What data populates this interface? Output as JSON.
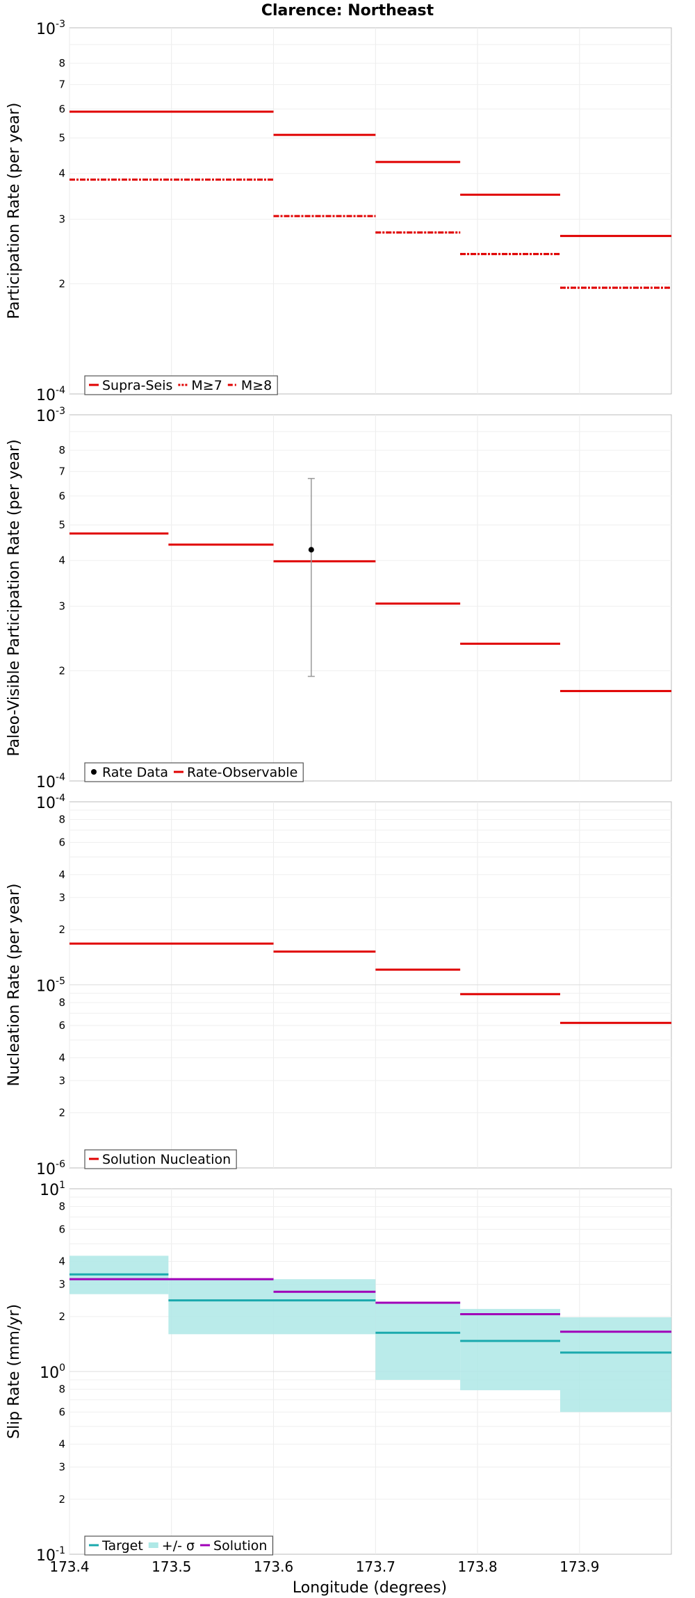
{
  "title": "Clarence: Northeast",
  "xlabel": "Longitude (degrees)",
  "x_ticks": [
    "173.4",
    "173.5",
    "173.6",
    "173.7",
    "173.8",
    "173.9"
  ],
  "chart_data": [
    {
      "type": "line",
      "title": "Clarence: Northeast",
      "ylabel": "Participation Rate (per year)",
      "y_scale": "log",
      "ylim": [
        0.0001,
        0.001
      ],
      "xlim": [
        173.4,
        173.99
      ],
      "grid": true,
      "legend_position": "bottom-left",
      "y_tick_labels": {
        "major": [
          "10",
          "10"
        ],
        "major_exp": [
          "-4",
          "-3"
        ],
        "minor": [
          "2",
          "3",
          "4",
          "5",
          "6",
          "7",
          "8"
        ]
      },
      "series": [
        {
          "name": "Supra-Seis",
          "style": "solid",
          "color": "#e00000",
          "segments": [
            [
              173.4,
              173.6,
              0.00059
            ],
            [
              173.6,
              173.7,
              0.00051
            ],
            [
              173.7,
              173.783,
              0.00043
            ],
            [
              173.783,
              173.881,
              0.00035
            ],
            [
              173.881,
              173.99,
              0.00027
            ]
          ]
        },
        {
          "name": "M≥7",
          "style": "dotted",
          "color": "#e00000",
          "segments": [
            [
              173.4,
              173.6,
              0.000385
            ],
            [
              173.6,
              173.7,
              0.000306
            ],
            [
              173.7,
              173.783,
              0.000276
            ],
            [
              173.783,
              173.881,
              0.000241
            ],
            [
              173.881,
              173.99,
              0.000195
            ]
          ]
        },
        {
          "name": "M≥8",
          "style": "dashdot",
          "color": "#e00000",
          "segments": [
            [
              173.4,
              173.6,
              0.000385
            ],
            [
              173.6,
              173.7,
              0.000306
            ],
            [
              173.7,
              173.783,
              0.000276
            ],
            [
              173.783,
              173.881,
              0.000241
            ],
            [
              173.881,
              173.99,
              0.000195
            ]
          ]
        }
      ]
    },
    {
      "type": "line",
      "ylabel": "Paleo-Visible Participation Rate (per year)",
      "y_scale": "log",
      "ylim": [
        0.0001,
        0.001
      ],
      "xlim": [
        173.4,
        173.99
      ],
      "grid": true,
      "legend_position": "bottom-left",
      "y_tick_labels": {
        "major": [
          "10",
          "10"
        ],
        "major_exp": [
          "-4",
          "-3"
        ],
        "minor": [
          "2",
          "3",
          "4",
          "5",
          "6",
          "7",
          "8"
        ]
      },
      "points": [
        {
          "name": "Rate Data",
          "x": 173.637,
          "y": 0.000428,
          "y_low": 0.000193,
          "y_high": 0.00067
        }
      ],
      "series": [
        {
          "name": "Rate-Observable",
          "style": "solid",
          "color": "#e00000",
          "segments": [
            [
              173.4,
              173.497,
              0.000474
            ],
            [
              173.497,
              173.6,
              0.000442
            ],
            [
              173.6,
              173.7,
              0.000398
            ],
            [
              173.7,
              173.783,
              0.000305
            ],
            [
              173.783,
              173.881,
              0.000237
            ],
            [
              173.881,
              173.99,
              0.000176
            ]
          ]
        }
      ]
    },
    {
      "type": "line",
      "ylabel": "Nucleation Rate (per year)",
      "y_scale": "log",
      "ylim": [
        1e-06,
        0.0001
      ],
      "xlim": [
        173.4,
        173.99
      ],
      "grid": true,
      "legend_position": "bottom-left",
      "y_tick_labels": {
        "major": [
          "10",
          "10",
          "10"
        ],
        "major_exp": [
          "-6",
          "-5",
          "-4"
        ],
        "minor": [
          "2",
          "3",
          "4",
          "6",
          "8"
        ]
      },
      "series": [
        {
          "name": "Solution Nucleation",
          "style": "solid",
          "color": "#e00000",
          "segments": [
            [
              173.4,
              173.6,
              1.68e-05
            ],
            [
              173.6,
              173.7,
              1.52e-05
            ],
            [
              173.7,
              173.783,
              1.21e-05
            ],
            [
              173.783,
              173.881,
              8.9e-06
            ],
            [
              173.881,
              173.99,
              6.2e-06
            ]
          ]
        }
      ]
    },
    {
      "type": "line",
      "ylabel": "Slip Rate (mm/yr)",
      "y_scale": "log",
      "ylim": [
        0.1,
        10
      ],
      "xlim": [
        173.4,
        173.99
      ],
      "grid": true,
      "legend_position": "bottom-left",
      "y_tick_labels": {
        "major": [
          "10",
          "10",
          "10"
        ],
        "major_exp": [
          "-1",
          "0",
          "1"
        ],
        "minor": [
          "2",
          "3",
          "4",
          "6",
          "8"
        ]
      },
      "band": {
        "name": "+/- σ",
        "color": "#aee8e6",
        "segments": [
          [
            173.4,
            173.497,
            2.65,
            4.3
          ],
          [
            173.497,
            173.7,
            1.6,
            3.2
          ],
          [
            173.7,
            173.783,
            0.9,
            2.35
          ],
          [
            173.783,
            173.881,
            0.79,
            2.2
          ],
          [
            173.881,
            173.99,
            0.6,
            1.98
          ]
        ]
      },
      "series": [
        {
          "name": "Target",
          "style": "solid",
          "color": "#1aa9ad",
          "segments": [
            [
              173.4,
              173.497,
              3.4
            ],
            [
              173.497,
              173.7,
              2.45
            ],
            [
              173.7,
              173.783,
              1.63
            ],
            [
              173.783,
              173.881,
              1.47
            ],
            [
              173.881,
              173.99,
              1.27
            ]
          ]
        },
        {
          "name": "Solution",
          "style": "solid",
          "color": "#a000b8",
          "segments": [
            [
              173.4,
              173.6,
              3.2
            ],
            [
              173.6,
              173.7,
              2.73
            ],
            [
              173.7,
              173.783,
              2.38
            ],
            [
              173.783,
              173.881,
              2.06
            ],
            [
              173.881,
              173.99,
              1.65
            ]
          ]
        }
      ]
    }
  ]
}
